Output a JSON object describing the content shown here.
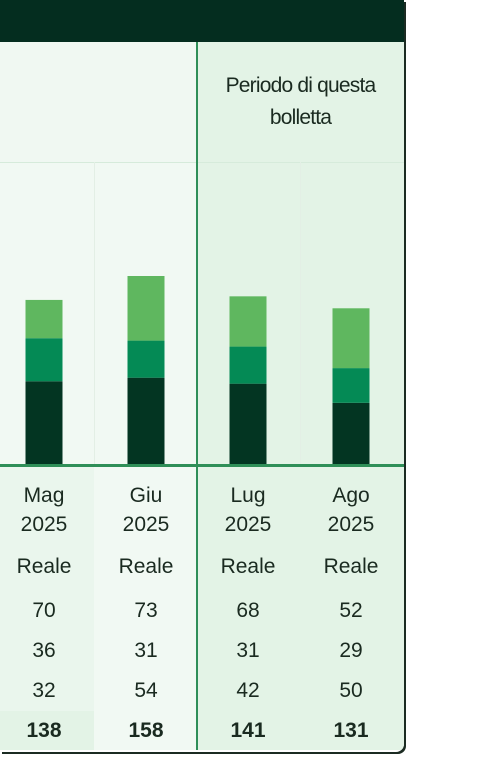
{
  "period_label": "Periodo di questa bolletta",
  "colors": {
    "header_bar": "#042d1f",
    "accent": "#2f8f58",
    "seg_dark": "#033522",
    "seg_mid": "#048a55",
    "seg_light": "#5fb75f"
  },
  "chart_data": {
    "type": "bar",
    "stacked": true,
    "categories": [
      "Mag 2025",
      "Giu 2025",
      "Lug 2025",
      "Ago 2025"
    ],
    "months": [
      {
        "name": "Mag",
        "year": "2025"
      },
      {
        "name": "Giu",
        "year": "2025"
      },
      {
        "name": "Lug",
        "year": "2025"
      },
      {
        "name": "Ago",
        "year": "2025"
      }
    ],
    "types": [
      "Reale",
      "Reale",
      "Reale",
      "Reale"
    ],
    "series": [
      {
        "values": [
          70,
          73,
          68,
          52
        ],
        "color": "#033522"
      },
      {
        "values": [
          36,
          31,
          31,
          29
        ],
        "color": "#048a55"
      },
      {
        "values": [
          32,
          54,
          42,
          50
        ],
        "color": "#5fb75f"
      }
    ],
    "totals": [
      138,
      158,
      141,
      131
    ],
    "ylim": [
      0,
      158
    ],
    "grid": false
  }
}
